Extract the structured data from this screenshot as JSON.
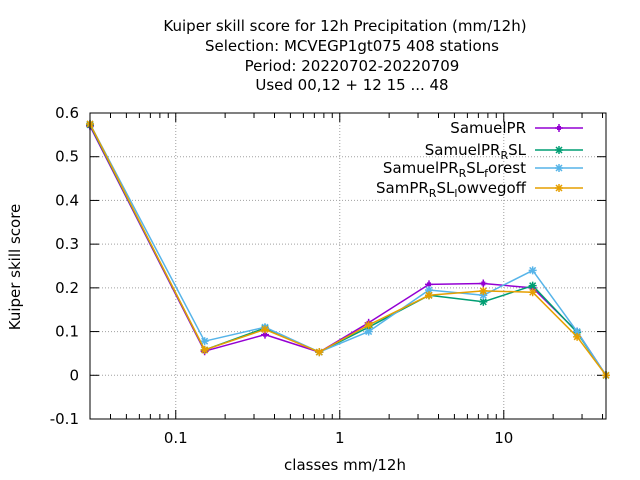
{
  "chart_data": {
    "type": "line",
    "title_lines": [
      "Kuiper skill score  for 12h Precipitation (mm/12h)",
      "Selection: MCVEGP1gt075     408 stations",
      "Period: 20220702-20220709",
      "Used  00,12  + 12 15 ... 48"
    ],
    "xlabel": "classes mm/12h",
    "ylabel": "Kuiper skill score",
    "x_scale": "log",
    "xlim": [
      0.03,
      42
    ],
    "ylim": [
      -0.1,
      0.6
    ],
    "x_ticks": [
      0.1,
      1,
      10
    ],
    "x_tick_labels": [
      "0.1",
      "1",
      "10"
    ],
    "y_ticks": [
      -0.1,
      0,
      0.1,
      0.2,
      0.3,
      0.4,
      0.5,
      0.6
    ],
    "y_tick_labels": [
      "-0.1",
      "0",
      "0.1",
      "0.2",
      "0.3",
      "0.4",
      "0.5",
      "0.6"
    ],
    "grid": true,
    "legend_position": "top-right",
    "x": [
      0.03,
      0.15,
      0.35,
      0.75,
      1.5,
      3.5,
      7.5,
      15,
      28,
      42
    ],
    "series": [
      {
        "name": "SamuelPR",
        "label_main": "SamuelPR",
        "label_sub": "",
        "label_rest": "",
        "color": "#9400d3",
        "marker": "plus",
        "values": [
          0.57,
          0.055,
          0.093,
          0.053,
          0.12,
          0.208,
          0.21,
          0.2,
          0.1,
          0.0
        ]
      },
      {
        "name": "SamuelPR_RSL",
        "label_main": "SamuelPR",
        "label_sub": "R",
        "label_rest": "SL",
        "color": "#009e73",
        "marker": "star",
        "values": [
          0.573,
          0.058,
          0.108,
          0.053,
          0.11,
          0.183,
          0.168,
          0.205,
          0.098,
          0.0
        ]
      },
      {
        "name": "SamuelPR_RSL_forest",
        "label_main": "SamuelPR",
        "label_sub": "R",
        "label_rest": "SL",
        "label_sub2": "f",
        "label_rest2": "orest",
        "color": "#56b4e9",
        "marker": "star",
        "values": [
          0.575,
          0.078,
          0.11,
          0.053,
          0.1,
          0.195,
          0.183,
          0.24,
          0.1,
          0.0
        ]
      },
      {
        "name": "SamPR_RSL_lowvegoff",
        "label_main": "SamPR",
        "label_sub": "R",
        "label_rest": "SL",
        "label_sub2": "l",
        "label_rest2": "owvegoff",
        "color": "#e69f00",
        "marker": "star",
        "values": [
          0.575,
          0.058,
          0.105,
          0.053,
          0.115,
          0.183,
          0.193,
          0.19,
          0.088,
          0.0
        ]
      }
    ]
  }
}
